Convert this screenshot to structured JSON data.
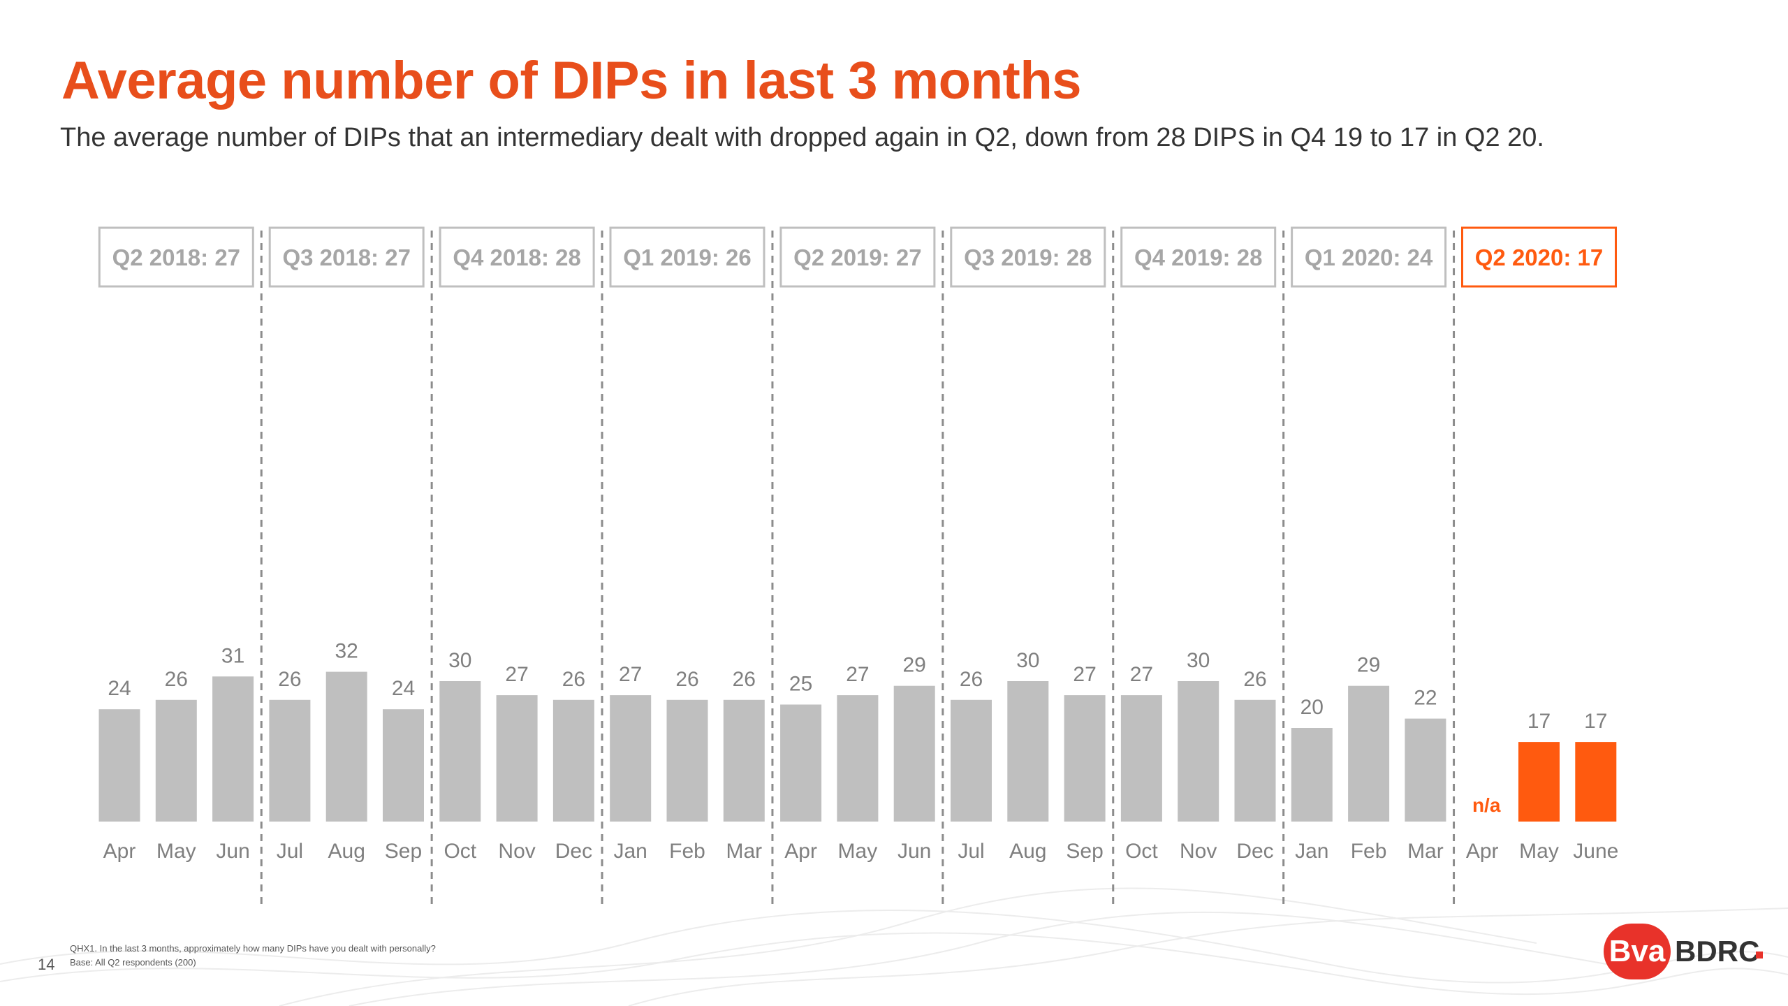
{
  "page": {
    "title": "Average number of DIPs in last 3 months",
    "subtitle": "The average number of DIPs that an intermediary dealt with dropped again in Q2, down from 28 DIPS in Q4 19 to 17 in Q2 20.",
    "page_number": "14",
    "footnote_question": "QHX1. In the last 3 months, approximately how many DIPs have you dealt with personally?",
    "footnote_base": "Base: All Q2 respondents (200)",
    "logo_left": "Bva",
    "logo_right": "BDRC"
  },
  "colors": {
    "title": "#e84e1b",
    "bar_default": "#bfbfbf",
    "bar_highlight": "#ff5a0f",
    "quarter_highlight": "#ff5a0f",
    "label": "#7f7f7f"
  },
  "chart_data": {
    "type": "bar",
    "groups": [
      {
        "label": "Q2 2018: 27",
        "highlight": false,
        "months": [
          {
            "month": "Apr",
            "value": 24
          },
          {
            "month": "May",
            "value": 26
          },
          {
            "month": "Jun",
            "value": 31
          }
        ]
      },
      {
        "label": "Q3 2018: 27",
        "highlight": false,
        "months": [
          {
            "month": "Jul",
            "value": 26
          },
          {
            "month": "Aug",
            "value": 32
          },
          {
            "month": "Sep",
            "value": 24
          }
        ]
      },
      {
        "label": "Q4 2018: 28",
        "highlight": false,
        "months": [
          {
            "month": "Oct",
            "value": 30
          },
          {
            "month": "Nov",
            "value": 27
          },
          {
            "month": "Dec",
            "value": 26
          }
        ]
      },
      {
        "label": "Q1 2019: 26",
        "highlight": false,
        "months": [
          {
            "month": "Jan",
            "value": 27
          },
          {
            "month": "Feb",
            "value": 26
          },
          {
            "month": "Mar",
            "value": 26
          }
        ]
      },
      {
        "label": "Q2 2019: 27",
        "highlight": false,
        "months": [
          {
            "month": "Apr",
            "value": 25
          },
          {
            "month": "May",
            "value": 27
          },
          {
            "month": "Jun",
            "value": 29
          }
        ]
      },
      {
        "label": "Q3 2019: 28",
        "highlight": false,
        "months": [
          {
            "month": "Jul",
            "value": 26
          },
          {
            "month": "Aug",
            "value": 30
          },
          {
            "month": "Sep",
            "value": 27
          }
        ]
      },
      {
        "label": "Q4 2019: 28",
        "highlight": false,
        "months": [
          {
            "month": "Oct",
            "value": 27
          },
          {
            "month": "Nov",
            "value": 30
          },
          {
            "month": "Dec",
            "value": 26
          }
        ]
      },
      {
        "label": "Q1 2020: 24",
        "highlight": false,
        "months": [
          {
            "month": "Jan",
            "value": 20
          },
          {
            "month": "Feb",
            "value": 29
          },
          {
            "month": "Mar",
            "value": 22
          }
        ]
      },
      {
        "label": "Q2 2020: 17",
        "highlight": true,
        "months": [
          {
            "month": "Apr",
            "value": null,
            "label": "n/a"
          },
          {
            "month": "May",
            "value": 17
          },
          {
            "month": "June",
            "value": 17
          }
        ]
      }
    ],
    "grid": false,
    "legend": "none"
  }
}
